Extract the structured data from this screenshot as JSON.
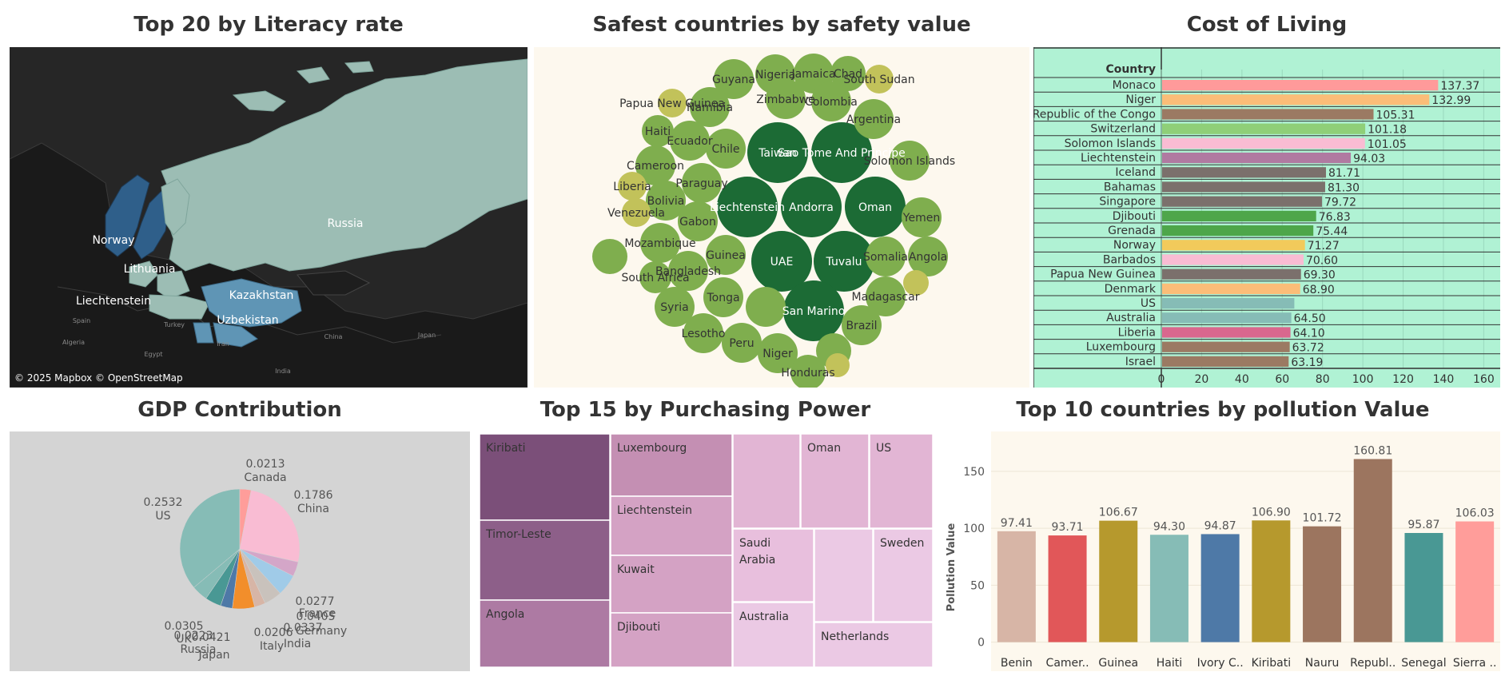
{
  "titles": {
    "literacy": "Top 20 by Literacy rate",
    "safety": "Safest countries by safety value",
    "cost": "Cost of Living",
    "gdp": "GDP Contribution",
    "purchasing": "Top 15 by Purchasing Power",
    "pollution": "Top 10 countries by pollution Value"
  },
  "colors": {
    "map_bg": "#262626",
    "map_land_highlight": "#9cbdb4",
    "map_dark_blue": "#2f5f8a",
    "bubble_dark": "#1c6b35",
    "bubble_mid": "#7fae4e",
    "bubble_light": "#c2c25a",
    "cost_bg": "#b0f2d4",
    "gdp_bg": "#d4d4d4",
    "pollution_bg": "#fdf8ee"
  },
  "literacy_map": {
    "labels": [
      "Russia",
      "Norway",
      "Lithuania",
      "Kazakhstan",
      "Liechtenstein",
      "Uzbekistan"
    ],
    "minor_labels": [
      "Spain",
      "Turkey",
      "Iran",
      "Algeria",
      "Egypt",
      "China",
      "Japan",
      "India"
    ],
    "attribution": "© 2025 Mapbox © OpenStreetMap"
  },
  "chart_data": [
    {
      "type": "bubble",
      "title": "Safest countries by safety value",
      "points": [
        {
          "label": "Taiwan",
          "tier": "high"
        },
        {
          "label": "Sao Tome And Principe",
          "tier": "high"
        },
        {
          "label": "Liechtenstein",
          "tier": "high"
        },
        {
          "label": "Andorra",
          "tier": "high"
        },
        {
          "label": "Oman",
          "tier": "high"
        },
        {
          "label": "UAE",
          "tier": "high"
        },
        {
          "label": "Tuvalu",
          "tier": "high"
        },
        {
          "label": "San Marino",
          "tier": "high"
        },
        {
          "label": "Guyana",
          "tier": "mid"
        },
        {
          "label": "Nigeria",
          "tier": "mid"
        },
        {
          "label": "Jamaica",
          "tier": "mid"
        },
        {
          "label": "Chad",
          "tier": "mid"
        },
        {
          "label": "South Sudan",
          "tier": "low"
        },
        {
          "label": "Papua New Guinea",
          "tier": "low"
        },
        {
          "label": "Namibia",
          "tier": "mid"
        },
        {
          "label": "Zimbabwe",
          "tier": "mid"
        },
        {
          "label": "Colombia",
          "tier": "mid"
        },
        {
          "label": "Argentina",
          "tier": "mid"
        },
        {
          "label": "Haiti",
          "tier": "mid"
        },
        {
          "label": "Ecuador",
          "tier": "mid"
        },
        {
          "label": "Chile",
          "tier": "mid"
        },
        {
          "label": "Cameroon",
          "tier": "mid"
        },
        {
          "label": "Solomon Islands",
          "tier": "mid"
        },
        {
          "label": "Paraguay",
          "tier": "mid"
        },
        {
          "label": "Liberia",
          "tier": "low"
        },
        {
          "label": "Bolivia",
          "tier": "mid"
        },
        {
          "label": "Venezuela",
          "tier": "low"
        },
        {
          "label": "Gabon",
          "tier": "mid"
        },
        {
          "label": "Yemen",
          "tier": "mid"
        },
        {
          "label": "Mozambique",
          "tier": "mid"
        },
        {
          "label": "Guinea",
          "tier": "mid"
        },
        {
          "label": "Somalia",
          "tier": "mid"
        },
        {
          "label": "Angola",
          "tier": "mid"
        },
        {
          "label": "Bangladesh",
          "tier": "mid"
        },
        {
          "label": "South Africa",
          "tier": "mid"
        },
        {
          "label": "Madagascar",
          "tier": "mid"
        },
        {
          "label": "Tonga",
          "tier": "mid"
        },
        {
          "label": "Syria",
          "tier": "mid"
        },
        {
          "label": "Lesotho",
          "tier": "mid"
        },
        {
          "label": "Peru",
          "tier": "mid"
        },
        {
          "label": "Niger",
          "tier": "mid"
        },
        {
          "label": "Brazil",
          "tier": "mid"
        },
        {
          "label": "Honduras",
          "tier": "mid"
        },
        {
          "label": "",
          "tier": "mid"
        },
        {
          "label": "",
          "tier": "mid"
        },
        {
          "label": "",
          "tier": "mid"
        },
        {
          "label": "",
          "tier": "low"
        },
        {
          "label": "",
          "tier": "low"
        }
      ]
    },
    {
      "type": "bar",
      "orientation": "horizontal",
      "title": "Cost of Living",
      "ylabel": "Country",
      "categories": [
        "Monaco",
        "Niger",
        "Republic of the Congo",
        "Switzerland",
        "Solomon Islands",
        "Liechtenstein",
        "Iceland",
        "Bahamas",
        "Singapore",
        "Djibouti",
        "Grenada",
        "Norway",
        "Barbados",
        "Papua New Guinea",
        "Denmark",
        "US",
        "Australia",
        "Liberia",
        "Luxembourg",
        "Israel"
      ],
      "values": [
        137.37,
        132.99,
        105.31,
        101.18,
        101.05,
        94.03,
        81.71,
        81.3,
        79.72,
        76.83,
        75.44,
        71.27,
        70.6,
        69.3,
        68.9,
        66.0,
        64.5,
        64.1,
        63.72,
        63.19
      ],
      "value_labels": [
        "137.37",
        "132.99",
        "105.31",
        "101.18",
        "101.05",
        "94.03",
        "81.71",
        "81.30",
        "79.72",
        "76.83",
        "75.44",
        "71.27",
        "70.60",
        "69.30",
        "68.90",
        "",
        "64.50",
        "64.10",
        "63.72",
        "63.19"
      ],
      "bar_colors": [
        "#ff9a9a",
        "#fbbd78",
        "#9b7a63",
        "#8fcf78",
        "#f9bcd3",
        "#b07aa1",
        "#7b706c",
        "#7b706c",
        "#7b706c",
        "#4ea64a",
        "#4ea64a",
        "#f2ca5b",
        "#f9bcd3",
        "#7b706c",
        "#fbbd78",
        "#86bcb6",
        "#86bcb6",
        "#d9678e",
        "#9b7a63",
        "#9b7a63"
      ],
      "xticks": [
        0,
        20,
        40,
        60,
        80,
        100,
        120,
        140,
        160
      ],
      "xlim": [
        0,
        165
      ]
    },
    {
      "type": "pie",
      "title": "GDP Contribution",
      "slices": [
        {
          "label": "US",
          "value": 0.2532,
          "color": "#86bcb6",
          "text": "0.2532"
        },
        {
          "label": "Canada",
          "value": 0.0213,
          "color": "#ff9d9a",
          "text": "0.0213"
        },
        {
          "label": "China",
          "value": 0.1786,
          "color": "#f9bcd3",
          "text": "0.1786"
        },
        {
          "label": "",
          "value": 0.0277,
          "color": "#d4a6c8",
          "text": "0.0277"
        },
        {
          "label": "France",
          "value": 0.0405,
          "color": "#a0cbe8",
          "text": "0.0405"
        },
        {
          "label": "Germany",
          "value": 0.0337,
          "color": "#c9c2bc",
          "text": "0.0337"
        },
        {
          "label": "India",
          "value": 0.0206,
          "color": "#d7b5a6",
          "text": "0.0206"
        },
        {
          "label": "Italy",
          "value": 0.0421,
          "color": "#f28e2b",
          "text": "0.0421"
        },
        {
          "label": "Japan",
          "value": 0.0223,
          "color": "#4e79a7",
          "text": "0.0223"
        },
        {
          "label": "Russia",
          "value": 0.0305,
          "color": "#499894",
          "text": "0.0305"
        },
        {
          "label": "UK",
          "value": 0.0305,
          "color": "#86bcb6",
          "text": ""
        }
      ],
      "label_texts": {
        "canada": [
          "0.0213",
          "Canada"
        ],
        "china": [
          "0.1786",
          "China"
        ],
        "us": [
          "0.2532",
          "US"
        ],
        "c0277": "0.0277",
        "france": "France",
        "c0405": "0.0405",
        "germany": "Germany",
        "c0337": "0.0337",
        "india": "India",
        "c0206": "0.0206",
        "italy": "Italy",
        "c0305": "0.0305",
        "uk": "UK",
        "c0223": "0.0223",
        "c0421": "0.0421",
        "russia": "Russia",
        "japan": "Japan"
      }
    },
    {
      "type": "treemap",
      "title": "Top 15 by Purchasing Power",
      "tiles": [
        {
          "label": "Kiribati",
          "color": "#7b4f79"
        },
        {
          "label": "Timor-Leste",
          "color": "#8d5f89"
        },
        {
          "label": "Angola",
          "color": "#ad7aa3"
        },
        {
          "label": "Luxembourg",
          "color": "#c48fb3"
        },
        {
          "label": "Liechtenstein",
          "color": "#d4a2c4"
        },
        {
          "label": "Kuwait",
          "color": "#d4a2c4"
        },
        {
          "label": "Djibouti",
          "color": "#d4a2c4"
        },
        {
          "label": "",
          "color": "#e2b5d4"
        },
        {
          "label": "Oman",
          "color": "#e2b5d4"
        },
        {
          "label": "US",
          "color": "#e2b5d4"
        },
        {
          "label": "Saudi Arabia",
          "color": "#e8bfdd"
        },
        {
          "label": "",
          "color": "#ebc9e4"
        },
        {
          "label": "Sweden",
          "color": "#ebc9e4"
        },
        {
          "label": "Australia",
          "color": "#ebc9e4"
        },
        {
          "label": "Netherlands",
          "color": "#ebc9e4"
        }
      ]
    },
    {
      "type": "bar",
      "title": "Top 10 countries by pollution Value",
      "ylabel": "Pollution Value",
      "categories": [
        "Benin",
        "Camer..",
        "Guinea",
        "Haiti",
        "Ivory C..",
        "Kiribati",
        "Nauru",
        "Republ..",
        "Senegal",
        "Sierra .."
      ],
      "values": [
        97.41,
        93.71,
        106.67,
        94.3,
        94.87,
        106.9,
        101.72,
        160.81,
        95.87,
        106.03
      ],
      "value_labels": [
        "97.41",
        "93.71",
        "106.67",
        "94.30",
        "94.87",
        "106.90",
        "101.72",
        "160.81",
        "95.87",
        "106.03"
      ],
      "bar_colors": [
        "#d7b5a6",
        "#e15759",
        "#b6992d",
        "#86bcb6",
        "#4e79a7",
        "#b6992d",
        "#9c755f",
        "#9c755f",
        "#499894",
        "#ff9d9a"
      ],
      "yticks": [
        0,
        50,
        100,
        150
      ],
      "ylim": [
        -8,
        178
      ]
    }
  ]
}
